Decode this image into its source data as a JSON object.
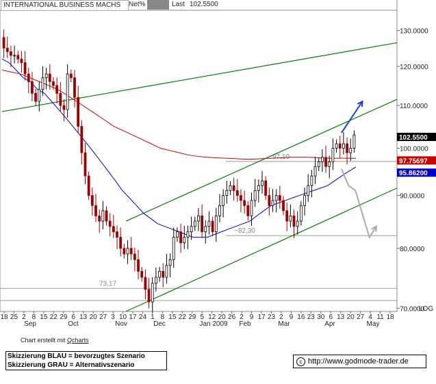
{
  "header": {
    "name": "INTERNATIONAL BUSINESS MACHS",
    "net_label": "Net%",
    "last_label": "Last",
    "last_value": "102.5500"
  },
  "chart_data": {
    "type": "candlestick",
    "y_scale": "log",
    "y_axis_label": "LOG",
    "ylim": [
      69.5,
      136
    ],
    "y_ticks": [
      {
        "value": 70,
        "label": "70.0000"
      },
      {
        "value": 80,
        "label": "80.0000"
      },
      {
        "value": 90,
        "label": "90.0000"
      },
      {
        "value": 100,
        "label": "100.0000"
      },
      {
        "value": 110,
        "label": "110.0000"
      },
      {
        "value": 120,
        "label": "120.0000"
      },
      {
        "value": 130,
        "label": "130.0000"
      }
    ],
    "x_day_ticks": [
      "18",
      "25",
      "2",
      "8",
      "15",
      "22",
      "29",
      "6",
      "13",
      "20",
      "27",
      "3",
      "10",
      "17",
      "24",
      "1",
      "8",
      "15",
      "22",
      "29",
      "5",
      "12",
      "20",
      "26",
      "2",
      "9",
      "17",
      "23",
      "2",
      "9",
      "16",
      "23",
      "30",
      "6",
      "13",
      "20",
      "27",
      "4",
      "11",
      "18"
    ],
    "x_month_labels": [
      "Sep",
      "Oct",
      "Nov",
      "Dec",
      "Jan 2009",
      "Feb",
      "Mar",
      "Apr",
      "May"
    ],
    "price_labels": [
      {
        "value": 102.55,
        "label": "102.5500",
        "color": "#000000"
      },
      {
        "value": 97.75697,
        "label": "97.75697",
        "color": "#cc0000"
      },
      {
        "value": 95.862,
        "label": "95.86200",
        "color": "#0000cc"
      }
    ],
    "horizontal_levels": [
      {
        "value": 97.1,
        "label": "97,10"
      },
      {
        "value": 82.3,
        "label": "~82,30"
      },
      {
        "value": 73.17,
        "label": "73,17"
      }
    ],
    "price_path": [
      128,
      125,
      124,
      123,
      123,
      122,
      121,
      118,
      116,
      113,
      111,
      114,
      117,
      118,
      116,
      115,
      113,
      110,
      109,
      118,
      117,
      112,
      105,
      99,
      94,
      90,
      88,
      86,
      85,
      87,
      85,
      84,
      83,
      82,
      80,
      79,
      80,
      79,
      78,
      76,
      75,
      73,
      71,
      74,
      75,
      76,
      75,
      77,
      78,
      82,
      83,
      81,
      82,
      83,
      84,
      85,
      86,
      83,
      84,
      85,
      83,
      86,
      88,
      90,
      91,
      92,
      91,
      90,
      89,
      88,
      86,
      89,
      91,
      92,
      93,
      90,
      88,
      89,
      90,
      89,
      87,
      85,
      86,
      84,
      85,
      88,
      90,
      92,
      94,
      96,
      97,
      98,
      96,
      97,
      100,
      101,
      100,
      101,
      99,
      100,
      103
    ],
    "series": [
      {
        "color": "#0000cc",
        "values": [
          122,
          121,
          119,
          117,
          116,
          114,
          113,
          111,
          109,
          107,
          105,
          103,
          101,
          99,
          97,
          95,
          93,
          91,
          89.5,
          88,
          86.5,
          85.5,
          84.5,
          84,
          83.5,
          83,
          82.5,
          82,
          82,
          82,
          82.5,
          83,
          83.5,
          84,
          84.5,
          85,
          86,
          87,
          88,
          88.5,
          89,
          89.5,
          90,
          90.5,
          91,
          91.5,
          92,
          93,
          94,
          95,
          95.9
        ]
      },
      {
        "color": "#cc0000",
        "values": [
          119,
          118.5,
          118,
          117,
          116,
          115,
          114,
          112.5,
          111,
          109.5,
          108,
          106.5,
          105,
          104,
          103,
          102,
          101,
          100,
          99.5,
          99,
          98.5,
          98.2,
          98,
          97.9,
          97.8,
          97.7,
          97.6,
          97.6,
          97.7,
          97.8,
          97.9,
          98,
          98,
          98,
          97.9,
          97.8,
          97.8,
          97.8,
          97.76
        ]
      }
    ],
    "trendlines": [
      {
        "color": "#008000",
        "from": [
          0,
          108.5
        ],
        "to": [
          100,
          126.5
        ]
      },
      {
        "color": "#008000",
        "from": [
          35,
          85
        ],
        "to": [
          100,
          111.5
        ]
      },
      {
        "color": "#008000",
        "from": [
          35,
          69.5
        ],
        "to": [
          100,
          91.5
        ]
      }
    ],
    "scenario_arrows": [
      {
        "name": "BLAU",
        "color": "#1040e0",
        "points": [
          [
            94,
            103.5
          ],
          [
            97,
            111
          ]
        ]
      },
      {
        "name": "GRAU",
        "color": "#aaaaaa",
        "points": [
          [
            94,
            95.5
          ],
          [
            95,
            92
          ],
          [
            96,
            91
          ],
          [
            98,
            82
          ],
          [
            99,
            84
          ]
        ]
      }
    ]
  },
  "credit": {
    "prefix": "Chart erstellt mit ",
    "link": "Qcharts"
  },
  "notes": [
    "Skizzierung BLAU = bevorzugtes Szenario",
    "Skizzierung GRAU = Alternativszenario"
  ],
  "website": "http://www.godmode-trader.de"
}
